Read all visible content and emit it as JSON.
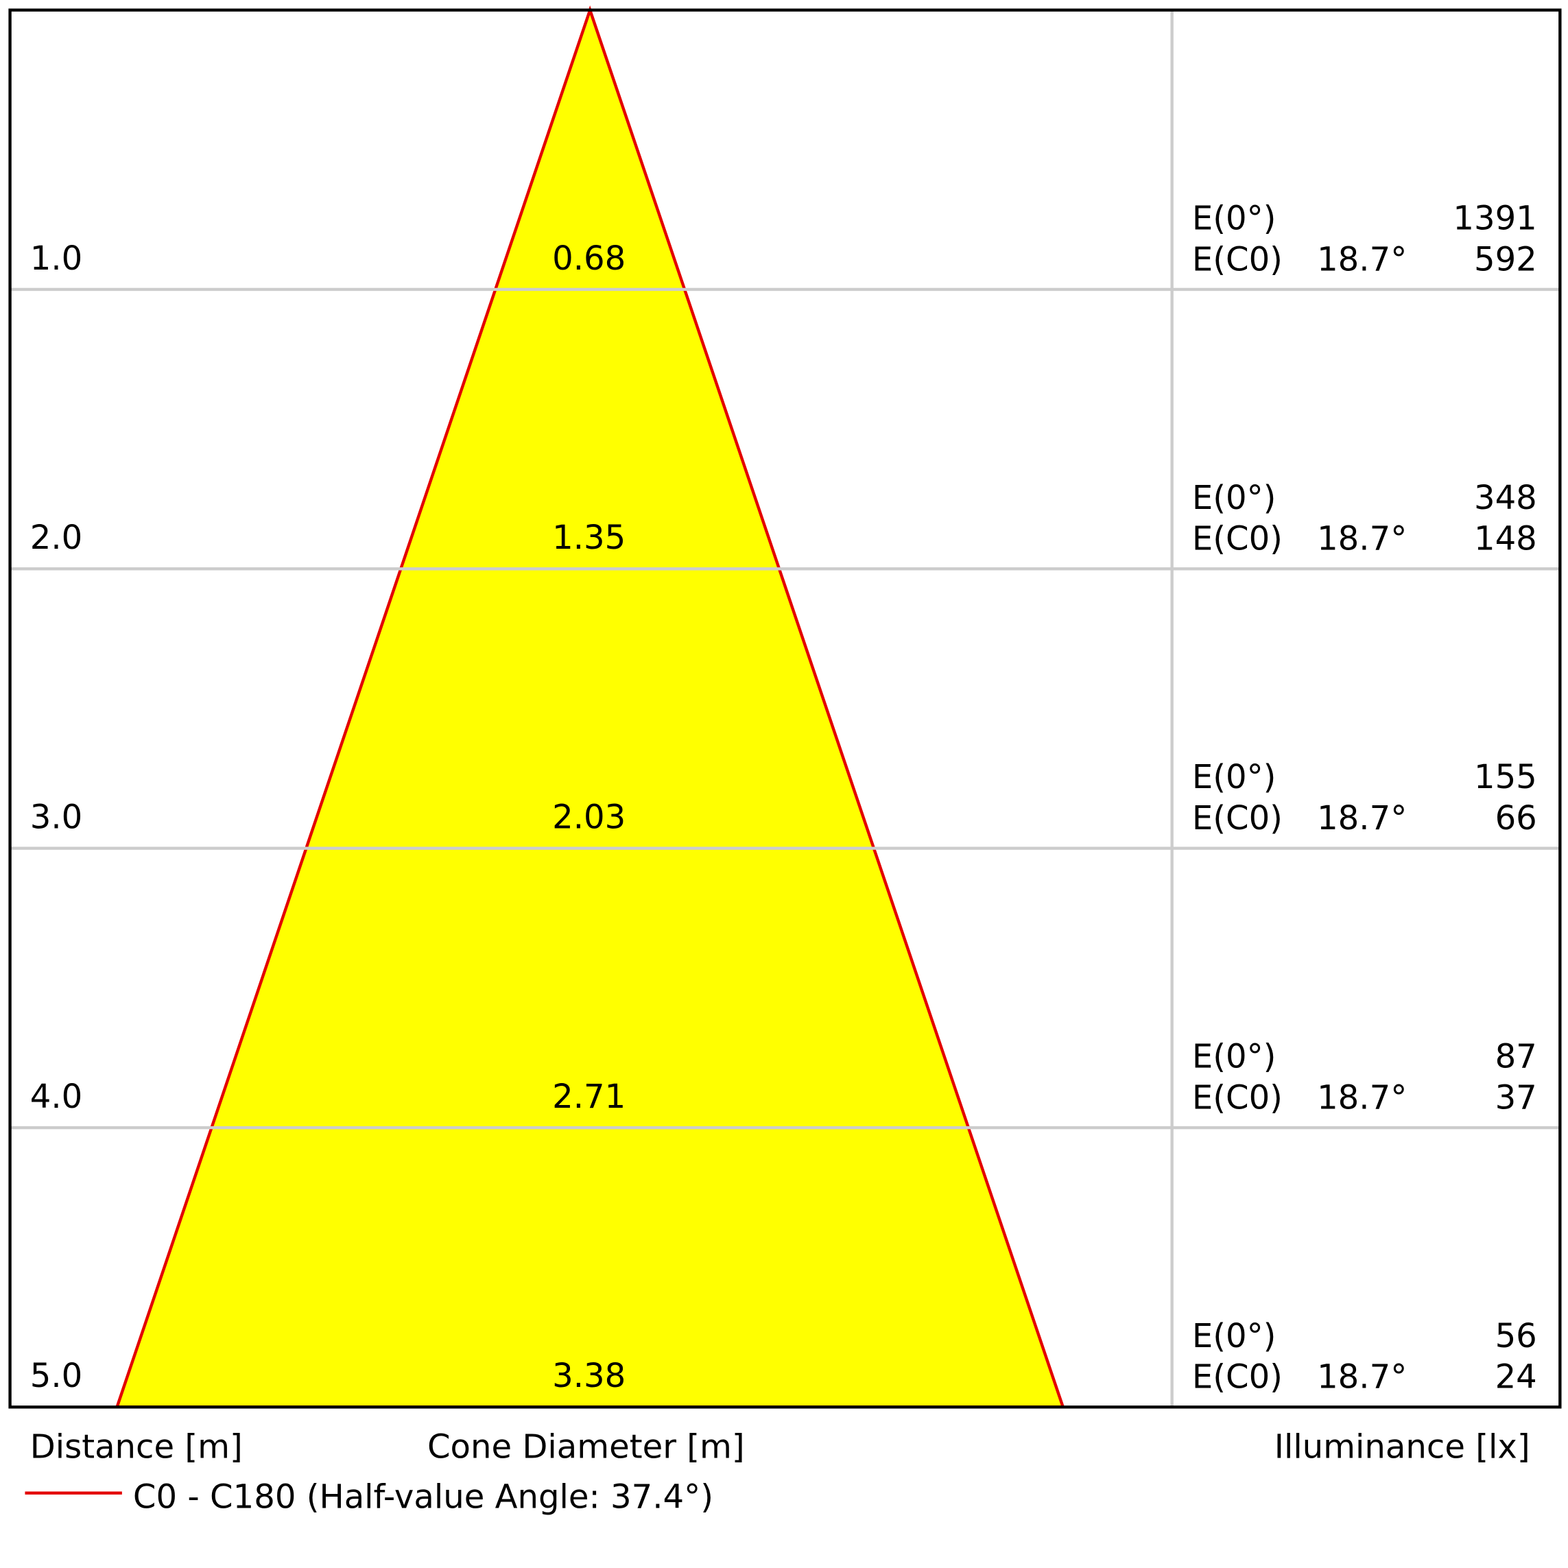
{
  "rows": [
    {
      "distance": "1.0",
      "diameter": "0.68",
      "e0_label": "E(0°)",
      "e0": "1391",
      "ec_label": "E(C0)",
      "angle": "18.7°",
      "ec": "592"
    },
    {
      "distance": "2.0",
      "diameter": "1.35",
      "e0_label": "E(0°)",
      "e0": "348",
      "ec_label": "E(C0)",
      "angle": "18.7°",
      "ec": "148"
    },
    {
      "distance": "3.0",
      "diameter": "2.03",
      "e0_label": "E(0°)",
      "e0": "155",
      "ec_label": "E(C0)",
      "angle": "18.7°",
      "ec": "66"
    },
    {
      "distance": "4.0",
      "diameter": "2.71",
      "e0_label": "E(0°)",
      "e0": "87",
      "ec_label": "E(C0)",
      "angle": "18.7°",
      "ec": "37"
    },
    {
      "distance": "5.0",
      "diameter": "3.38",
      "e0_label": "E(0°)",
      "e0": "56",
      "ec_label": "E(C0)",
      "angle": "18.7°",
      "ec": "24"
    }
  ],
  "labels": {
    "distance": "Distance [m]",
    "diameter": "Cone Diameter [m]",
    "illuminance": "Illuminance [lx]"
  },
  "legend": "C0 - C180 (Half-value Angle: 37.4°)"
}
